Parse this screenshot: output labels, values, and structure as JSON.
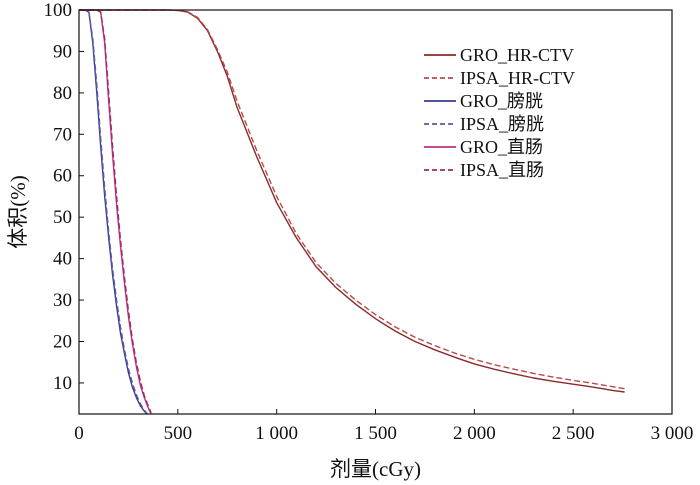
{
  "chart_data": {
    "type": "line",
    "title": "",
    "xlabel": "剂量(cGy)",
    "ylabel": "体积(%)",
    "xlim": [
      0,
      3000
    ],
    "ylim": [
      2.5,
      100
    ],
    "xticks": [
      0,
      500,
      1000,
      1500,
      2000,
      2500,
      3000
    ],
    "xtick_labels": [
      "0",
      "500",
      "1 000",
      "1 500",
      "2 000",
      "2 500",
      "3 000"
    ],
    "yticks": [
      10,
      20,
      30,
      40,
      50,
      60,
      70,
      80,
      90,
      100
    ],
    "ytick_labels": [
      "10",
      "20",
      "30",
      "40",
      "50",
      "60",
      "70",
      "80",
      "90",
      "100"
    ],
    "grid": false,
    "legend_position": "top-right",
    "series": [
      {
        "name": "GRO_HR-CTV",
        "color": "#8b2a2a",
        "dash": "solid",
        "x": [
          0,
          300,
          450,
          500,
          550,
          600,
          650,
          700,
          750,
          800,
          900,
          1000,
          1100,
          1200,
          1300,
          1400,
          1500,
          1600,
          1700,
          1800,
          1900,
          2000,
          2100,
          2200,
          2300,
          2400,
          2500,
          2600,
          2700,
          2760
        ],
        "y": [
          100,
          100,
          100,
          99.9,
          99.5,
          98,
          95,
          90,
          84,
          76.5,
          64.5,
          53.5,
          45,
          38,
          33,
          29,
          25.5,
          22.5,
          20,
          18,
          16.2,
          14.6,
          13.3,
          12.2,
          11.2,
          10.4,
          9.7,
          9,
          8.2,
          7.8
        ]
      },
      {
        "name": "IPSA_HR-CTV",
        "color": "#b84a4a",
        "dash": "dashed",
        "x": [
          0,
          300,
          450,
          500,
          550,
          600,
          650,
          700,
          750,
          800,
          900,
          1000,
          1100,
          1200,
          1300,
          1400,
          1500,
          1600,
          1700,
          1800,
          1900,
          2000,
          2100,
          2200,
          2300,
          2400,
          2500,
          2600,
          2700,
          2760
        ],
        "y": [
          100,
          100,
          100,
          99.9,
          99.6,
          98.2,
          95.3,
          90.5,
          85,
          78,
          66,
          55,
          46,
          39,
          34,
          30,
          26.5,
          23.5,
          21,
          19,
          17.2,
          15.7,
          14.4,
          13.3,
          12.3,
          11.4,
          10.6,
          9.9,
          9.1,
          8.6
        ]
      },
      {
        "name": "GRO_膀胱",
        "color": "#3c3c8c",
        "dash": "solid",
        "x": [
          0,
          30,
          50,
          70,
          90,
          110,
          130,
          150,
          170,
          190,
          210,
          230,
          250,
          270,
          290,
          310,
          330,
          345
        ],
        "y": [
          100,
          100,
          99.5,
          92,
          80,
          67,
          55,
          45,
          36,
          28.5,
          22,
          17,
          12.5,
          9,
          6.5,
          4.5,
          3.2,
          2.5
        ]
      },
      {
        "name": "IPSA_膀胱",
        "color": "#5a5ab0",
        "dash": "dashed",
        "x": [
          0,
          30,
          50,
          70,
          90,
          110,
          130,
          150,
          170,
          190,
          210,
          230,
          250,
          270,
          290,
          310,
          330,
          345
        ],
        "y": [
          100,
          100,
          99.5,
          93,
          82,
          69,
          57,
          46.5,
          37.5,
          30,
          23.5,
          18,
          13.5,
          10,
          7.2,
          5,
          3.5,
          2.6
        ]
      },
      {
        "name": "GRO_直肠",
        "color": "#c0307c",
        "dash": "solid",
        "x": [
          0,
          90,
          110,
          130,
          150,
          170,
          190,
          210,
          230,
          250,
          270,
          290,
          310,
          330,
          350,
          365
        ],
        "y": [
          100,
          100,
          99.5,
          92,
          78,
          65,
          53,
          43,
          34,
          26,
          19.5,
          14,
          9.5,
          6.5,
          4,
          2.5
        ]
      },
      {
        "name": "IPSA_直肠",
        "color": "#9a2a70",
        "dash": "dashed",
        "x": [
          0,
          90,
          110,
          130,
          150,
          170,
          190,
          210,
          230,
          250,
          270,
          290,
          310,
          330,
          350,
          365
        ],
        "y": [
          100,
          100,
          99.5,
          93,
          80,
          67,
          55,
          44.5,
          35.5,
          27.5,
          20.5,
          15,
          10.5,
          7,
          4.5,
          2.8
        ]
      }
    ]
  }
}
